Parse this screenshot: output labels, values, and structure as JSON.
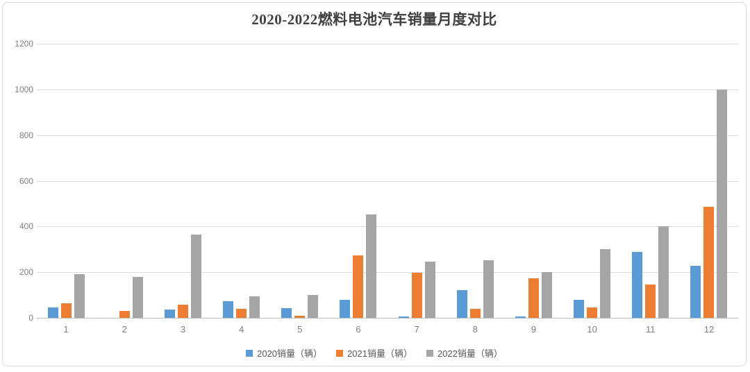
{
  "title": "2020-2022燃料电池汽车销量月度对比",
  "chart_data": {
    "type": "bar",
    "title": "2020-2022燃料电池汽车销量月度对比",
    "categories": [
      "1",
      "2",
      "3",
      "4",
      "5",
      "6",
      "7",
      "8",
      "9",
      "10",
      "11",
      "12"
    ],
    "series": [
      {
        "name": "2020销量（辆）",
        "color": "#5B9BD5",
        "values": [
          45,
          0,
          35,
          72,
          42,
          80,
          6,
          120,
          7,
          79,
          289,
          228
        ]
      },
      {
        "name": "2021销量（辆）",
        "color": "#ED7D31",
        "values": [
          64,
          29,
          59,
          38,
          10,
          272,
          196,
          38,
          174,
          46,
          145,
          485
        ]
      },
      {
        "name": "2022销量（辆）",
        "color": "#A5A5A5",
        "values": [
          192,
          178,
          366,
          94,
          101,
          452,
          246,
          253,
          200,
          300,
          402,
          1000
        ]
      }
    ],
    "xlabel": "",
    "ylabel": "",
    "ylim": [
      0,
      1200
    ],
    "yticks": [
      0,
      200,
      400,
      600,
      800,
      1000,
      1200
    ],
    "grid": true,
    "legend_position": "bottom",
    "colors": {
      "title_text": "#404040",
      "axis_label": "#7f7f7f",
      "legend_text": "#595959",
      "gridline": "#dcdcdc",
      "axis_line": "#c0c0c0",
      "background": "#ffffff",
      "border": "#d9d9d9"
    }
  }
}
